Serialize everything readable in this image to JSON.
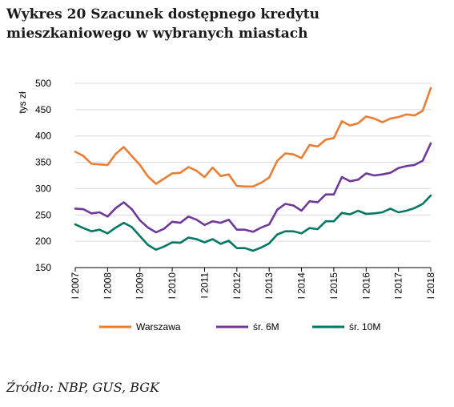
{
  "title": {
    "label": "Wykres 20",
    "text": "Szacunek dostępnego kredytu mieszkaniowego w wybranych miastach"
  },
  "source": "Źródło: NBP, GUS, BGK",
  "colors": {
    "Warszawa": "#ed7d31",
    "sr6M": "#70389a",
    "sr10M": "#007a66",
    "grid": "#d9d9d9",
    "axis": "#000000"
  },
  "chart_data": {
    "type": "line",
    "ylabel": "tys zł",
    "xlabel": "",
    "ylim": [
      150,
      500
    ],
    "yticks": [
      150,
      200,
      250,
      300,
      350,
      400,
      450,
      500
    ],
    "grid": true,
    "legend_position": "bottom",
    "x_tick_labels": [
      "I 2007",
      "I 2008",
      "I 2009",
      "I 2010",
      "I 2011",
      "I 2012",
      "I 2013",
      "I 2014",
      "I 2015",
      "I 2016",
      "I 2017",
      "I 2018"
    ],
    "x_start_year": 2007,
    "x": [
      "2007 Q1",
      "2007 Q2",
      "2007 Q3",
      "2007 Q4",
      "2008 Q1",
      "2008 Q2",
      "2008 Q3",
      "2008 Q4",
      "2009 Q1",
      "2009 Q2",
      "2009 Q3",
      "2009 Q4",
      "2010 Q1",
      "2010 Q2",
      "2010 Q3",
      "2010 Q4",
      "2011 Q1",
      "2011 Q2",
      "2011 Q3",
      "2011 Q4",
      "2012 Q1",
      "2012 Q2",
      "2012 Q3",
      "2012 Q4",
      "2013 Q1",
      "2013 Q2",
      "2013 Q3",
      "2013 Q4",
      "2014 Q1",
      "2014 Q2",
      "2014 Q3",
      "2014 Q4",
      "2015 Q1",
      "2015 Q2",
      "2015 Q3",
      "2015 Q4",
      "2016 Q1",
      "2016 Q2",
      "2016 Q3",
      "2016 Q4",
      "2017 Q1",
      "2017 Q2",
      "2017 Q3",
      "2017 Q4",
      "2018 Q1"
    ],
    "series": [
      {
        "name": "Warszawa",
        "color": "#ed7d31",
        "values": [
          370,
          362,
          347,
          346,
          345,
          366,
          379,
          362,
          345,
          323,
          309,
          319,
          329,
          330,
          341,
          334,
          322,
          340,
          324,
          327,
          305,
          304,
          304,
          311,
          321,
          353,
          367,
          365,
          358,
          383,
          380,
          393,
          396,
          428,
          420,
          424,
          437,
          433,
          426,
          433,
          436,
          441,
          439,
          448,
          491
        ]
      },
      {
        "name": "śr. 6M",
        "color": "#70389a",
        "values": [
          262,
          261,
          253,
          255,
          247,
          263,
          274,
          261,
          240,
          226,
          217,
          224,
          237,
          235,
          247,
          241,
          231,
          238,
          235,
          241,
          222,
          222,
          218,
          226,
          232,
          260,
          271,
          268,
          258,
          276,
          274,
          289,
          289,
          322,
          314,
          317,
          329,
          325,
          327,
          330,
          339,
          343,
          345,
          353,
          386
        ]
      },
      {
        "name": "śr. 10M",
        "color": "#007a66",
        "values": [
          232,
          225,
          219,
          222,
          215,
          226,
          235,
          227,
          210,
          193,
          184,
          190,
          198,
          197,
          207,
          204,
          198,
          204,
          195,
          201,
          187,
          187,
          182,
          188,
          196,
          213,
          219,
          219,
          215,
          225,
          223,
          238,
          238,
          254,
          251,
          258,
          252,
          253,
          255,
          262,
          255,
          258,
          263,
          271,
          287
        ]
      }
    ]
  }
}
